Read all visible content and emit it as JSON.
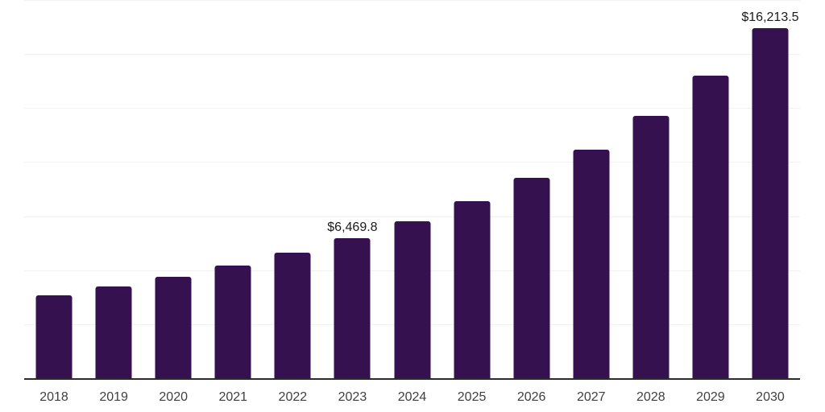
{
  "chart_data": {
    "type": "bar",
    "title": "",
    "xlabel": "",
    "ylabel": "",
    "categories": [
      "2018",
      "2019",
      "2020",
      "2021",
      "2022",
      "2023",
      "2024",
      "2025",
      "2026",
      "2027",
      "2028",
      "2029",
      "2030"
    ],
    "values": [
      3850,
      4260,
      4700,
      5220,
      5810,
      6469.8,
      7260,
      8200,
      9280,
      10580,
      12130,
      13990,
      16213.5
    ],
    "labeled_points": [
      {
        "category": "2023",
        "label": "$6,469.8"
      },
      {
        "category": "2030",
        "label": "$16,213.5"
      }
    ],
    "ylim": [
      0,
      17500
    ],
    "gridline_values": [
      2500,
      5000,
      7500,
      10000,
      12500,
      15000,
      17500
    ],
    "grid": "horizontal-only",
    "legend": "none",
    "y_tick_labels": "none",
    "colors": {
      "bar": "#351150",
      "axis_line": "#2b2b2b",
      "gridline": "#f1f1f1",
      "tick_label": "#3f3f3f",
      "data_label": "#1b1b1b",
      "background": "#ffffff"
    }
  }
}
